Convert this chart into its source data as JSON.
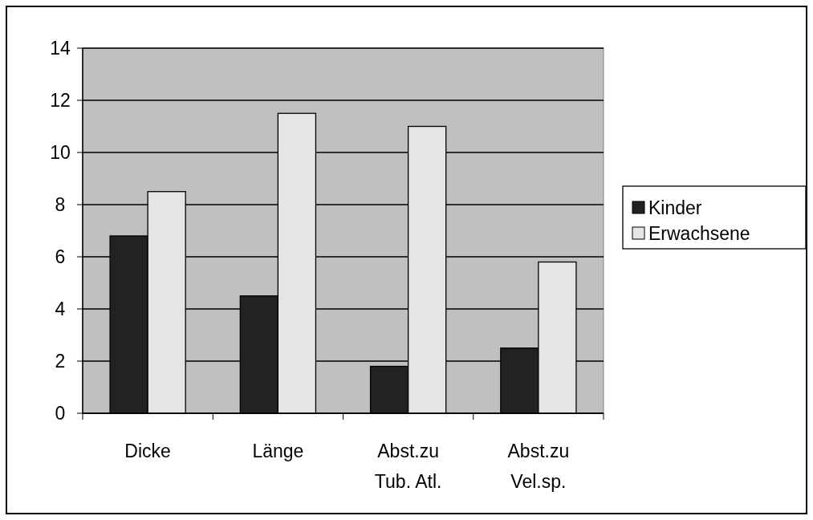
{
  "chart_data": {
    "type": "bar",
    "categories": [
      "Dicke",
      "Länge",
      "Abst.zu\nTub. Atl.",
      "Abst.zu\nVel.sp."
    ],
    "series": [
      {
        "name": "Kinder",
        "color": "#222222",
        "values": [
          6.8,
          4.5,
          1.8,
          2.5
        ]
      },
      {
        "name": "Erwachsene",
        "color": "#e5e5e5",
        "values": [
          8.5,
          11.5,
          11,
          5.8
        ]
      }
    ],
    "ylim": [
      0,
      14
    ],
    "yticks": [
      0,
      2,
      4,
      6,
      8,
      10,
      12,
      14
    ],
    "grid": "y",
    "legend": "right"
  }
}
